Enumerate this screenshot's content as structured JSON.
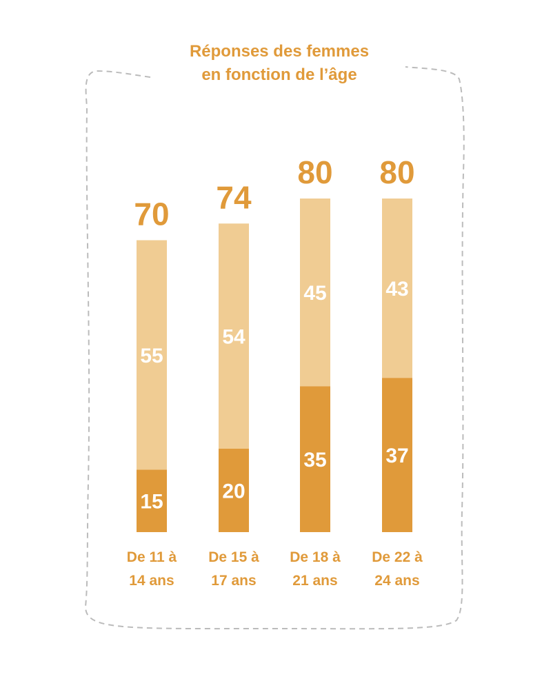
{
  "chart_data": {
    "type": "bar",
    "stacked": true,
    "title": [
      "Réponses des femmes",
      "en fonction de l’âge"
    ],
    "categories": [
      [
        "De 11 à",
        "14 ans"
      ],
      [
        "De 15 à",
        "17 ans"
      ],
      [
        "De 18 à",
        "21 ans"
      ],
      [
        "De 22 à",
        "24 ans"
      ]
    ],
    "totals": [
      "70",
      "74",
      "80",
      "80"
    ],
    "series": [
      {
        "values": [
          15,
          20,
          35,
          37
        ],
        "color": "#e09a3a"
      },
      {
        "values": [
          55,
          54,
          45,
          43
        ],
        "color": "#f0cc93"
      }
    ],
    "ylim": [
      0,
      80
    ],
    "grid": false,
    "legend": "none"
  },
  "colors": {
    "accent": "#e09a3a",
    "frame": "#bbbbbb"
  }
}
